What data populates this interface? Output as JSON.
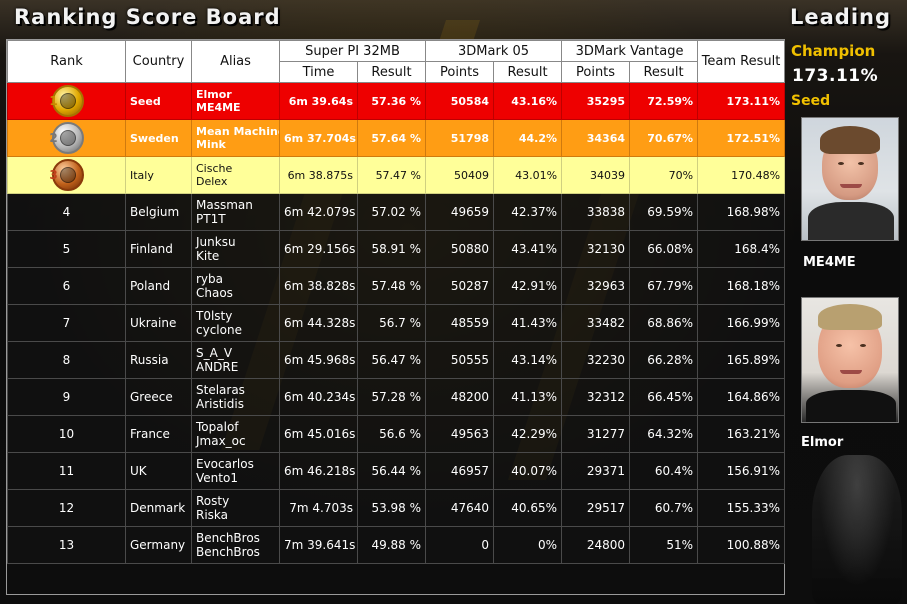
{
  "header": {
    "title": "Ranking Score Board",
    "leading_title": "Leading"
  },
  "columns": {
    "rank": "Rank",
    "country": "Country",
    "alias": "Alias",
    "team_result": "Team Result",
    "groups": [
      "Super PI 32MB",
      "3DMark 05",
      "3DMark Vantage"
    ],
    "sub": [
      "Time",
      "Result",
      "Points",
      "Result",
      "Points",
      "Result"
    ]
  },
  "rows": [
    {
      "rank": "1",
      "country": "Seed",
      "alias1": "Elmor",
      "alias2": "ME4ME",
      "pi_time": "6m 39.64s",
      "pi_result": "57.36 %",
      "m05_points": "50584",
      "m05_result": "43.16%",
      "vant_points": "35295",
      "vant_result": "72.59%",
      "team": "173.11%"
    },
    {
      "rank": "2",
      "country": "Sweden",
      "alias1": "Mean Machine",
      "alias2": "Mink",
      "pi_time": "6m 37.704s",
      "pi_result": "57.64 %",
      "m05_points": "51798",
      "m05_result": "44.2%",
      "vant_points": "34364",
      "vant_result": "70.67%",
      "team": "172.51%"
    },
    {
      "rank": "3",
      "country": "Italy",
      "alias1": "Cische",
      "alias2": "Delex",
      "pi_time": "6m 38.875s",
      "pi_result": "57.47 %",
      "m05_points": "50409",
      "m05_result": "43.01%",
      "vant_points": "34039",
      "vant_result": "70%",
      "team": "170.48%"
    },
    {
      "rank": "4",
      "country": "Belgium",
      "alias1": "Massman",
      "alias2": "PT1T",
      "pi_time": "6m 42.079s",
      "pi_result": "57.02 %",
      "m05_points": "49659",
      "m05_result": "42.37%",
      "vant_points": "33838",
      "vant_result": "69.59%",
      "team": "168.98%"
    },
    {
      "rank": "5",
      "country": "Finland",
      "alias1": "Junksu",
      "alias2": "Kite",
      "pi_time": "6m 29.156s",
      "pi_result": "58.91 %",
      "m05_points": "50880",
      "m05_result": "43.41%",
      "vant_points": "32130",
      "vant_result": "66.08%",
      "team": "168.4%"
    },
    {
      "rank": "6",
      "country": "Poland",
      "alias1": "ryba",
      "alias2": "Chaos",
      "pi_time": "6m 38.828s",
      "pi_result": "57.48 %",
      "m05_points": "50287",
      "m05_result": "42.91%",
      "vant_points": "32963",
      "vant_result": "67.79%",
      "team": "168.18%"
    },
    {
      "rank": "7",
      "country": "Ukraine",
      "alias1": "T0lsty",
      "alias2": "cyclone",
      "pi_time": "6m 44.328s",
      "pi_result": "56.7 %",
      "m05_points": "48559",
      "m05_result": "41.43%",
      "vant_points": "33482",
      "vant_result": "68.86%",
      "team": "166.99%"
    },
    {
      "rank": "8",
      "country": "Russia",
      "alias1": "S_A_V",
      "alias2": "ANDRE",
      "pi_time": "6m 45.968s",
      "pi_result": "56.47 %",
      "m05_points": "50555",
      "m05_result": "43.14%",
      "vant_points": "32230",
      "vant_result": "66.28%",
      "team": "165.89%"
    },
    {
      "rank": "9",
      "country": "Greece",
      "alias1": "Stelaras",
      "alias2": "Aristidis",
      "pi_time": "6m 40.234s",
      "pi_result": "57.28 %",
      "m05_points": "48200",
      "m05_result": "41.13%",
      "vant_points": "32312",
      "vant_result": "66.45%",
      "team": "164.86%"
    },
    {
      "rank": "10",
      "country": "France",
      "alias1": "Topalof",
      "alias2": "Jmax_oc",
      "pi_time": "6m 45.016s",
      "pi_result": "56.6 %",
      "m05_points": "49563",
      "m05_result": "42.29%",
      "vant_points": "31277",
      "vant_result": "64.32%",
      "team": "163.21%"
    },
    {
      "rank": "11",
      "country": "UK",
      "alias1": "Evocarlos",
      "alias2": "Vento1",
      "pi_time": "6m 46.218s",
      "pi_result": "56.44 %",
      "m05_points": "46957",
      "m05_result": "40.07%",
      "vant_points": "29371",
      "vant_result": "60.4%",
      "team": "156.91%"
    },
    {
      "rank": "12",
      "country": "Denmark",
      "alias1": "Rosty",
      "alias2": "Riska",
      "pi_time": "7m 4.703s",
      "pi_result": "53.98 %",
      "m05_points": "47640",
      "m05_result": "40.65%",
      "vant_points": "29517",
      "vant_result": "60.7%",
      "team": "155.33%"
    },
    {
      "rank": "13",
      "country": "Germany",
      "alias1": "BenchBros",
      "alias2": "BenchBros",
      "pi_time": "7m 39.641s",
      "pi_result": "49.88 %",
      "m05_points": "0",
      "m05_result": "0%",
      "vant_points": "24800",
      "vant_result": "51%",
      "team": "100.88%"
    }
  ],
  "leading": {
    "label": "Champion",
    "score": "173.11%",
    "country": "Seed",
    "player1": "ME4ME",
    "player2": "Elmor"
  },
  "colors": {
    "gold_row": "#ee0000",
    "silver_row": "#ff9d14",
    "bronze_row": "#ffff99",
    "champion_text": "#f0c000"
  },
  "icons": {
    "rank1": "gold-medal-icon",
    "rank2": "silver-medal-icon",
    "rank3": "bronze-medal-icon"
  }
}
